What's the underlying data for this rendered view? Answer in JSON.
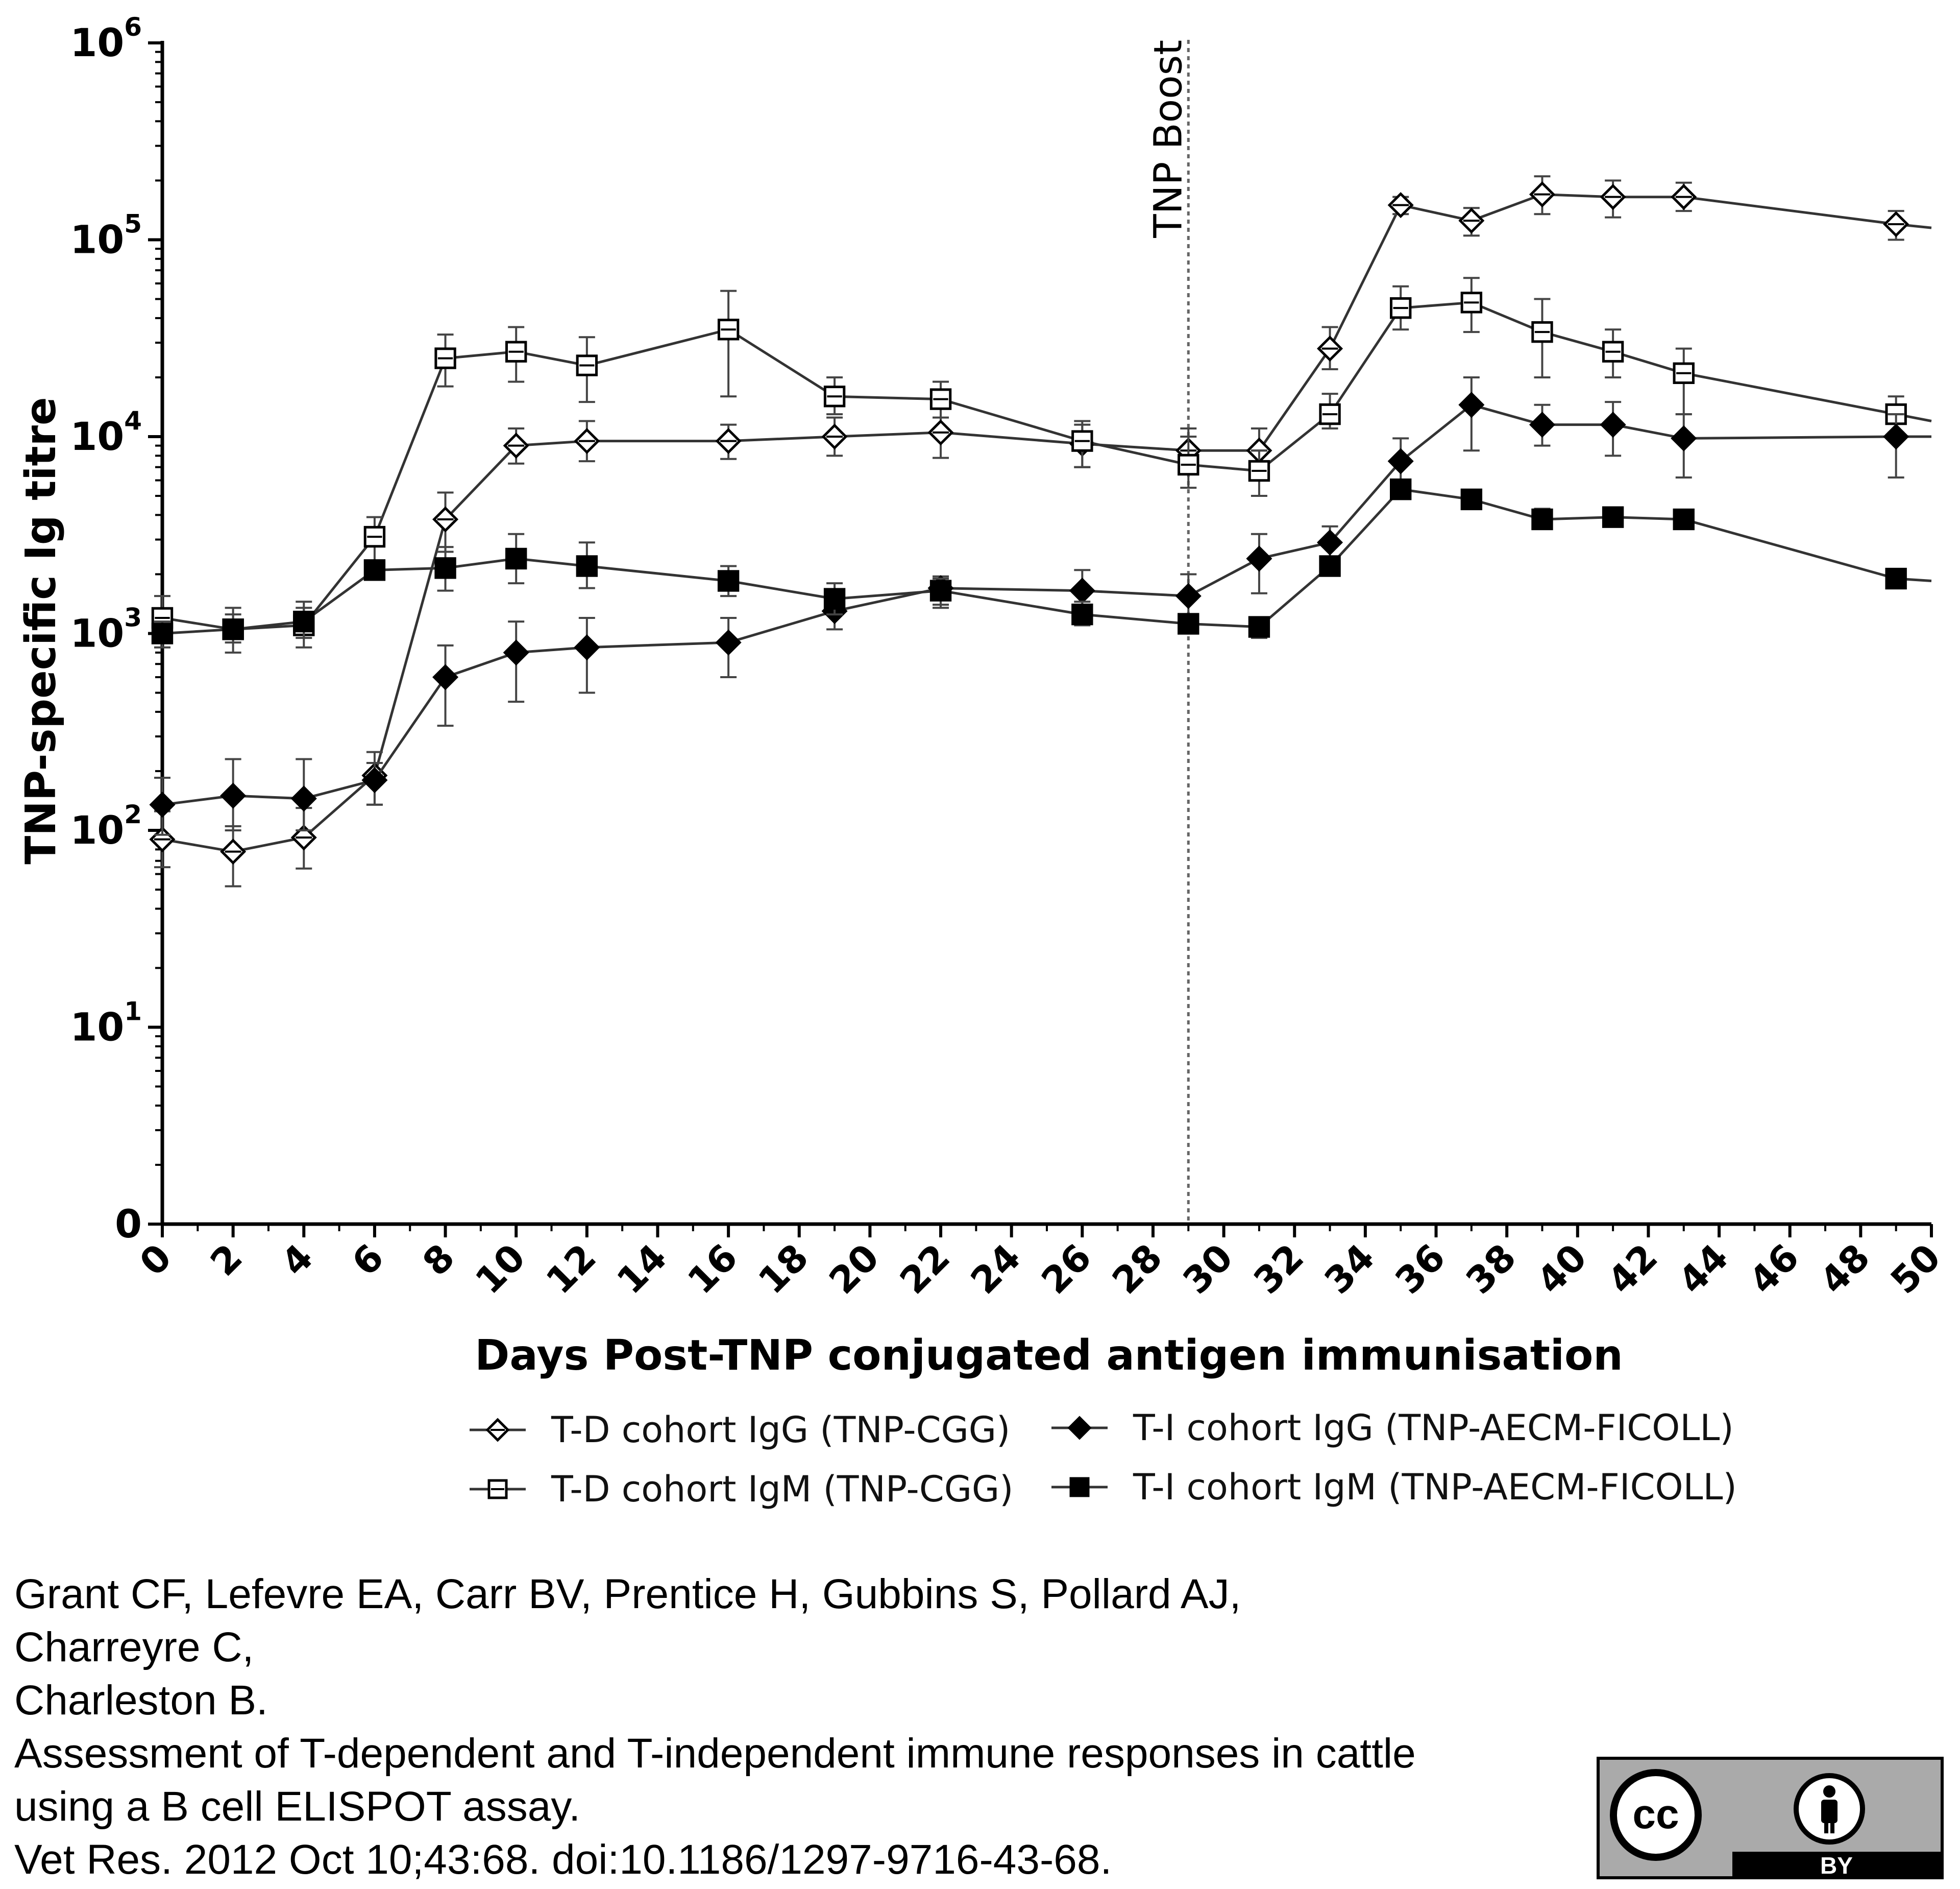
{
  "chart_data": {
    "type": "line",
    "xlabel": "Days Post-TNP conjugated antigen immunisation",
    "ylabel": "TNP-specific Ig titre",
    "xlim": [
      0,
      50
    ],
    "ylim": [
      1,
      1000000
    ],
    "yscale": "log",
    "x_ticks": [
      "0",
      "2",
      "4",
      "6",
      "8",
      "10",
      "12",
      "14",
      "16",
      "18",
      "20",
      "22",
      "24",
      "26",
      "28",
      "30",
      "32",
      "34",
      "36",
      "38",
      "40",
      "42",
      "44",
      "46",
      "48",
      "50"
    ],
    "y_ticks": [
      {
        "base": "0",
        "exp": ""
      },
      {
        "base": "10",
        "exp": "1"
      },
      {
        "base": "10",
        "exp": "2"
      },
      {
        "base": "10",
        "exp": "3"
      },
      {
        "base": "10",
        "exp": "4"
      },
      {
        "base": "10",
        "exp": "5"
      },
      {
        "base": "10",
        "exp": "6"
      }
    ],
    "annotation": {
      "label": "TNP Boost",
      "x": 29
    },
    "legend_position": "bottom",
    "series": [
      {
        "name": "T-D cohort  IgG (TNP-CGG)",
        "marker": "diamond-open",
        "x": [
          0,
          2,
          4,
          6,
          8,
          10,
          12,
          16,
          19,
          22,
          26,
          29,
          31,
          33,
          35,
          37,
          39,
          41,
          43,
          49,
          50
        ],
        "y": [
          90,
          78,
          92,
          190,
          3800,
          9000,
          9500,
          9500,
          10000,
          10500,
          9200,
          8500,
          8500,
          28000,
          150000,
          125000,
          170000,
          165000,
          165000,
          120000,
          115000
        ],
        "err": [
          [
            65,
            125
          ],
          [
            52,
            105
          ],
          [
            64,
            130
          ],
          [
            135,
            250
          ],
          [
            2600,
            5200
          ],
          [
            7300,
            11000
          ],
          [
            7500,
            12000
          ],
          [
            7700,
            11500
          ],
          [
            8000,
            12500
          ],
          [
            7800,
            14000
          ],
          [
            7000,
            12000
          ],
          [
            6500,
            11000
          ],
          [
            6500,
            11000
          ],
          [
            22000,
            36000
          ],
          [
            135000,
            165000
          ],
          [
            105000,
            145000
          ],
          [
            135000,
            210000
          ],
          [
            130000,
            200000
          ],
          [
            140000,
            195000
          ],
          [
            100000,
            140000
          ],
          null
        ]
      },
      {
        "name": "T-D cohort  IgM (TNP-CGG)",
        "marker": "square-open",
        "x": [
          0,
          2,
          4,
          6,
          8,
          10,
          12,
          16,
          19,
          22,
          26,
          29,
          31,
          33,
          35,
          37,
          39,
          41,
          43,
          49,
          50
        ],
        "y": [
          1200,
          1050,
          1100,
          3100,
          25000,
          27000,
          23000,
          35000,
          16000,
          15500,
          9500,
          7200,
          6700,
          13000,
          45000,
          48000,
          34000,
          27000,
          21000,
          13000,
          12000
        ],
        "err": [
          [
            950,
            1550
          ],
          [
            800,
            1350
          ],
          [
            850,
            1450
          ],
          [
            2300,
            3900
          ],
          [
            18000,
            33000
          ],
          [
            19000,
            36000
          ],
          [
            15000,
            32000
          ],
          [
            16000,
            55000
          ],
          [
            13000,
            20000
          ],
          [
            12500,
            19000
          ],
          [
            7000,
            11500
          ],
          [
            5500,
            10000
          ],
          [
            5000,
            8500
          ],
          [
            11000,
            16500
          ],
          [
            35000,
            58000
          ],
          [
            34000,
            64000
          ],
          [
            20000,
            50000
          ],
          [
            20000,
            35000
          ],
          [
            13000,
            28000
          ],
          [
            10500,
            16000
          ],
          null
        ]
      },
      {
        "name": "T-I cohort IgG (TNP-AECM-FICOLL)",
        "marker": "diamond-filled",
        "x": [
          0,
          2,
          4,
          6,
          8,
          10,
          12,
          16,
          19,
          22,
          26,
          29,
          31,
          33,
          35,
          37,
          39,
          41,
          43,
          49,
          50
        ],
        "y": [
          135,
          150,
          145,
          180,
          600,
          800,
          850,
          900,
          1300,
          1700,
          1650,
          1550,
          2400,
          2900,
          7500,
          14500,
          11500,
          11500,
          9800,
          10000,
          10000
        ],
        "err": [
          [
            95,
            185
          ],
          [
            100,
            230
          ],
          [
            100,
            230
          ],
          [
            135,
            220
          ],
          [
            340,
            870
          ],
          [
            450,
            1150
          ],
          [
            500,
            1200
          ],
          [
            600,
            1200
          ],
          [
            1050,
            1650
          ],
          [
            1350,
            1950
          ],
          [
            1250,
            2100
          ],
          [
            1150,
            2000
          ],
          [
            1600,
            3200
          ],
          [
            2300,
            3500
          ],
          [
            5800,
            9800
          ],
          [
            8500,
            20000
          ],
          [
            9000,
            14500
          ],
          [
            8000,
            15000
          ],
          [
            6200,
            13000
          ],
          [
            6200,
            13000
          ],
          null
        ]
      },
      {
        "name": "T-I cohort IgM (TNP-AECM-FICOLL)",
        "marker": "square-filled",
        "x": [
          0,
          2,
          4,
          6,
          8,
          10,
          12,
          16,
          19,
          22,
          26,
          29,
          31,
          33,
          35,
          37,
          39,
          41,
          43,
          49,
          50
        ],
        "y": [
          1000,
          1050,
          1150,
          2100,
          2150,
          2400,
          2200,
          1850,
          1500,
          1650,
          1250,
          1120,
          1080,
          2200,
          5400,
          4800,
          3800,
          3900,
          3800,
          1900,
          1850
        ],
        "err": [
          [
            850,
            1150
          ],
          [
            900,
            1250
          ],
          [
            950,
            1350
          ],
          [
            1900,
            2350
          ],
          [
            1650,
            2750
          ],
          [
            1800,
            3200
          ],
          [
            1700,
            2900
          ],
          [
            1550,
            2200
          ],
          [
            1250,
            1800
          ],
          [
            1400,
            1900
          ],
          [
            1100,
            1450
          ],
          [
            1000,
            1250
          ],
          [
            950,
            1200
          ],
          [
            2000,
            2400
          ],
          [
            5000,
            5800
          ],
          [
            4400,
            5200
          ],
          [
            3400,
            4300
          ],
          [
            3600,
            4200
          ],
          [
            3500,
            4100
          ],
          [
            1750,
            2100
          ],
          null
        ]
      }
    ]
  },
  "citation": {
    "line1": "Grant CF, Lefevre EA, Carr BV, Prentice H, Gubbins S, Pollard AJ,",
    "line2": "Charreyre C,",
    "line3": "Charleston B.",
    "line4": "Assessment of T-dependent and T-independent immune responses in cattle",
    "line5": "using a B cell ELISPOT assay.",
    "line6": "Vet Res. 2012 Oct 10;43:68. doi:10.1186/1297-9716-43-68."
  },
  "license_badge": {
    "cc_text": "cc",
    "by_text": "BY",
    "icon": "person-icon"
  }
}
